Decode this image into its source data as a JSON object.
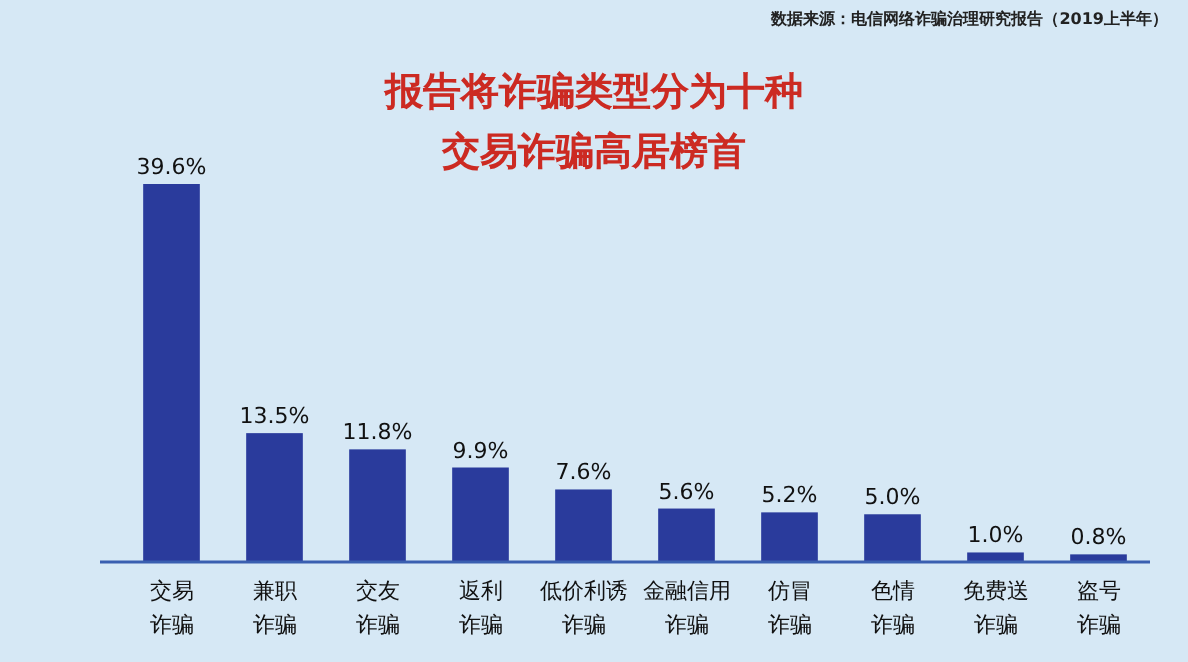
{
  "chart_data": {
    "type": "bar",
    "title": "报告将诈骗类型分为十种",
    "subtitle": "交易诈骗高居榜首",
    "annotations": [
      "数据来源：电信网络诈骗治理研究报告（2019上半年）"
    ],
    "categories": [
      "交易诈骗",
      "兼职诈骗",
      "交友诈骗",
      "返利诈骗",
      "低价利诱诈骗",
      "金融信用诈骗",
      "仿冒诈骗",
      "色情诈骗",
      "免费送诈骗",
      "盗号诈骗"
    ],
    "values": [
      39.6,
      13.5,
      11.8,
      9.9,
      7.6,
      5.6,
      5.2,
      5.0,
      1.0,
      0.8
    ],
    "value_labels": [
      "39.6%",
      "13.5%",
      "11.8%",
      "9.9%",
      "7.6%",
      "5.6%",
      "5.2%",
      "5.0%",
      "1.0%",
      "0.8%"
    ],
    "color": "#2a3b9c",
    "tick_labels": "x",
    "grid": false
  }
}
